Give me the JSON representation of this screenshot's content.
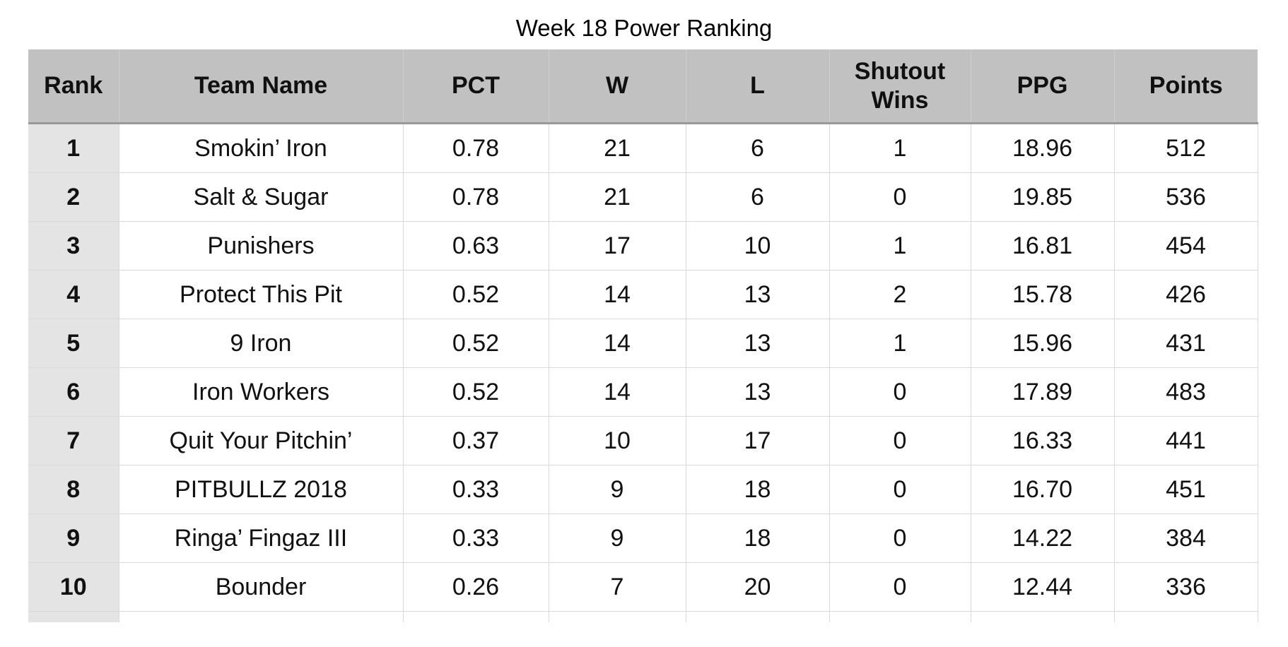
{
  "page": {
    "title": "Week 18 Power Ranking",
    "background_color": "#ffffff"
  },
  "table": {
    "columns": [
      "Rank",
      "Team Name",
      "PCT",
      "W",
      "L",
      "Shutout Wins",
      "PPG",
      "Points"
    ],
    "fields": [
      "rank",
      "team",
      "pct",
      "w",
      "l",
      "shutout_wins",
      "ppg",
      "points"
    ],
    "rows": [
      {
        "rank": "1",
        "team": "Smokin’ Iron",
        "pct": "0.78",
        "w": "21",
        "l": "6",
        "shutout_wins": "1",
        "ppg": "18.96",
        "points": "512"
      },
      {
        "rank": "2",
        "team": "Salt & Sugar",
        "pct": "0.78",
        "w": "21",
        "l": "6",
        "shutout_wins": "0",
        "ppg": "19.85",
        "points": "536"
      },
      {
        "rank": "3",
        "team": "Punishers",
        "pct": "0.63",
        "w": "17",
        "l": "10",
        "shutout_wins": "1",
        "ppg": "16.81",
        "points": "454"
      },
      {
        "rank": "4",
        "team": "Protect This Pit",
        "pct": "0.52",
        "w": "14",
        "l": "13",
        "shutout_wins": "2",
        "ppg": "15.78",
        "points": "426"
      },
      {
        "rank": "5",
        "team": "9 Iron",
        "pct": "0.52",
        "w": "14",
        "l": "13",
        "shutout_wins": "1",
        "ppg": "15.96",
        "points": "431"
      },
      {
        "rank": "6",
        "team": "Iron Workers",
        "pct": "0.52",
        "w": "14",
        "l": "13",
        "shutout_wins": "0",
        "ppg": "17.89",
        "points": "483"
      },
      {
        "rank": "7",
        "team": "Quit Your Pitchin’",
        "pct": "0.37",
        "w": "10",
        "l": "17",
        "shutout_wins": "0",
        "ppg": "16.33",
        "points": "441"
      },
      {
        "rank": "8",
        "team": "PITBULLZ 2018",
        "pct": "0.33",
        "w": "9",
        "l": "18",
        "shutout_wins": "0",
        "ppg": "16.70",
        "points": "451"
      },
      {
        "rank": "9",
        "team": "Ringa’ Fingaz III",
        "pct": "0.33",
        "w": "9",
        "l": "18",
        "shutout_wins": "0",
        "ppg": "14.22",
        "points": "384"
      },
      {
        "rank": "10",
        "team": "Bounder",
        "pct": "0.26",
        "w": "7",
        "l": "20",
        "shutout_wins": "0",
        "ppg": "12.44",
        "points": "336"
      }
    ],
    "colors": {
      "header_bg": "#c1c1c1",
      "rank_column_bg": "#e4e4e4",
      "gridline": "#d9d9d9",
      "header_bottom_border": "#989898",
      "text": "#111111"
    }
  },
  "chart_data": {
    "type": "table",
    "title": "Week 18 Power Ranking",
    "columns": [
      "Rank",
      "Team Name",
      "PCT",
      "W",
      "L",
      "Shutout Wins",
      "PPG",
      "Points"
    ],
    "rows": [
      [
        "1",
        "Smokin’ Iron",
        "0.78",
        "21",
        "6",
        "1",
        "18.96",
        "512"
      ],
      [
        "2",
        "Salt & Sugar",
        "0.78",
        "21",
        "6",
        "0",
        "19.85",
        "536"
      ],
      [
        "3",
        "Punishers",
        "0.63",
        "17",
        "10",
        "1",
        "16.81",
        "454"
      ],
      [
        "4",
        "Protect This Pit",
        "0.52",
        "14",
        "13",
        "2",
        "15.78",
        "426"
      ],
      [
        "5",
        "9 Iron",
        "0.52",
        "14",
        "13",
        "1",
        "15.96",
        "431"
      ],
      [
        "6",
        "Iron Workers",
        "0.52",
        "14",
        "13",
        "0",
        "17.89",
        "483"
      ],
      [
        "7",
        "Quit Your Pitchin’",
        "0.37",
        "10",
        "17",
        "0",
        "16.33",
        "441"
      ],
      [
        "8",
        "PITBULLZ 2018",
        "0.33",
        "9",
        "18",
        "0",
        "16.70",
        "451"
      ],
      [
        "9",
        "Ringa’ Fingaz III",
        "0.33",
        "9",
        "18",
        "0",
        "14.22",
        "384"
      ],
      [
        "10",
        "Bounder",
        "0.26",
        "7",
        "20",
        "0",
        "12.44",
        "336"
      ]
    ]
  }
}
